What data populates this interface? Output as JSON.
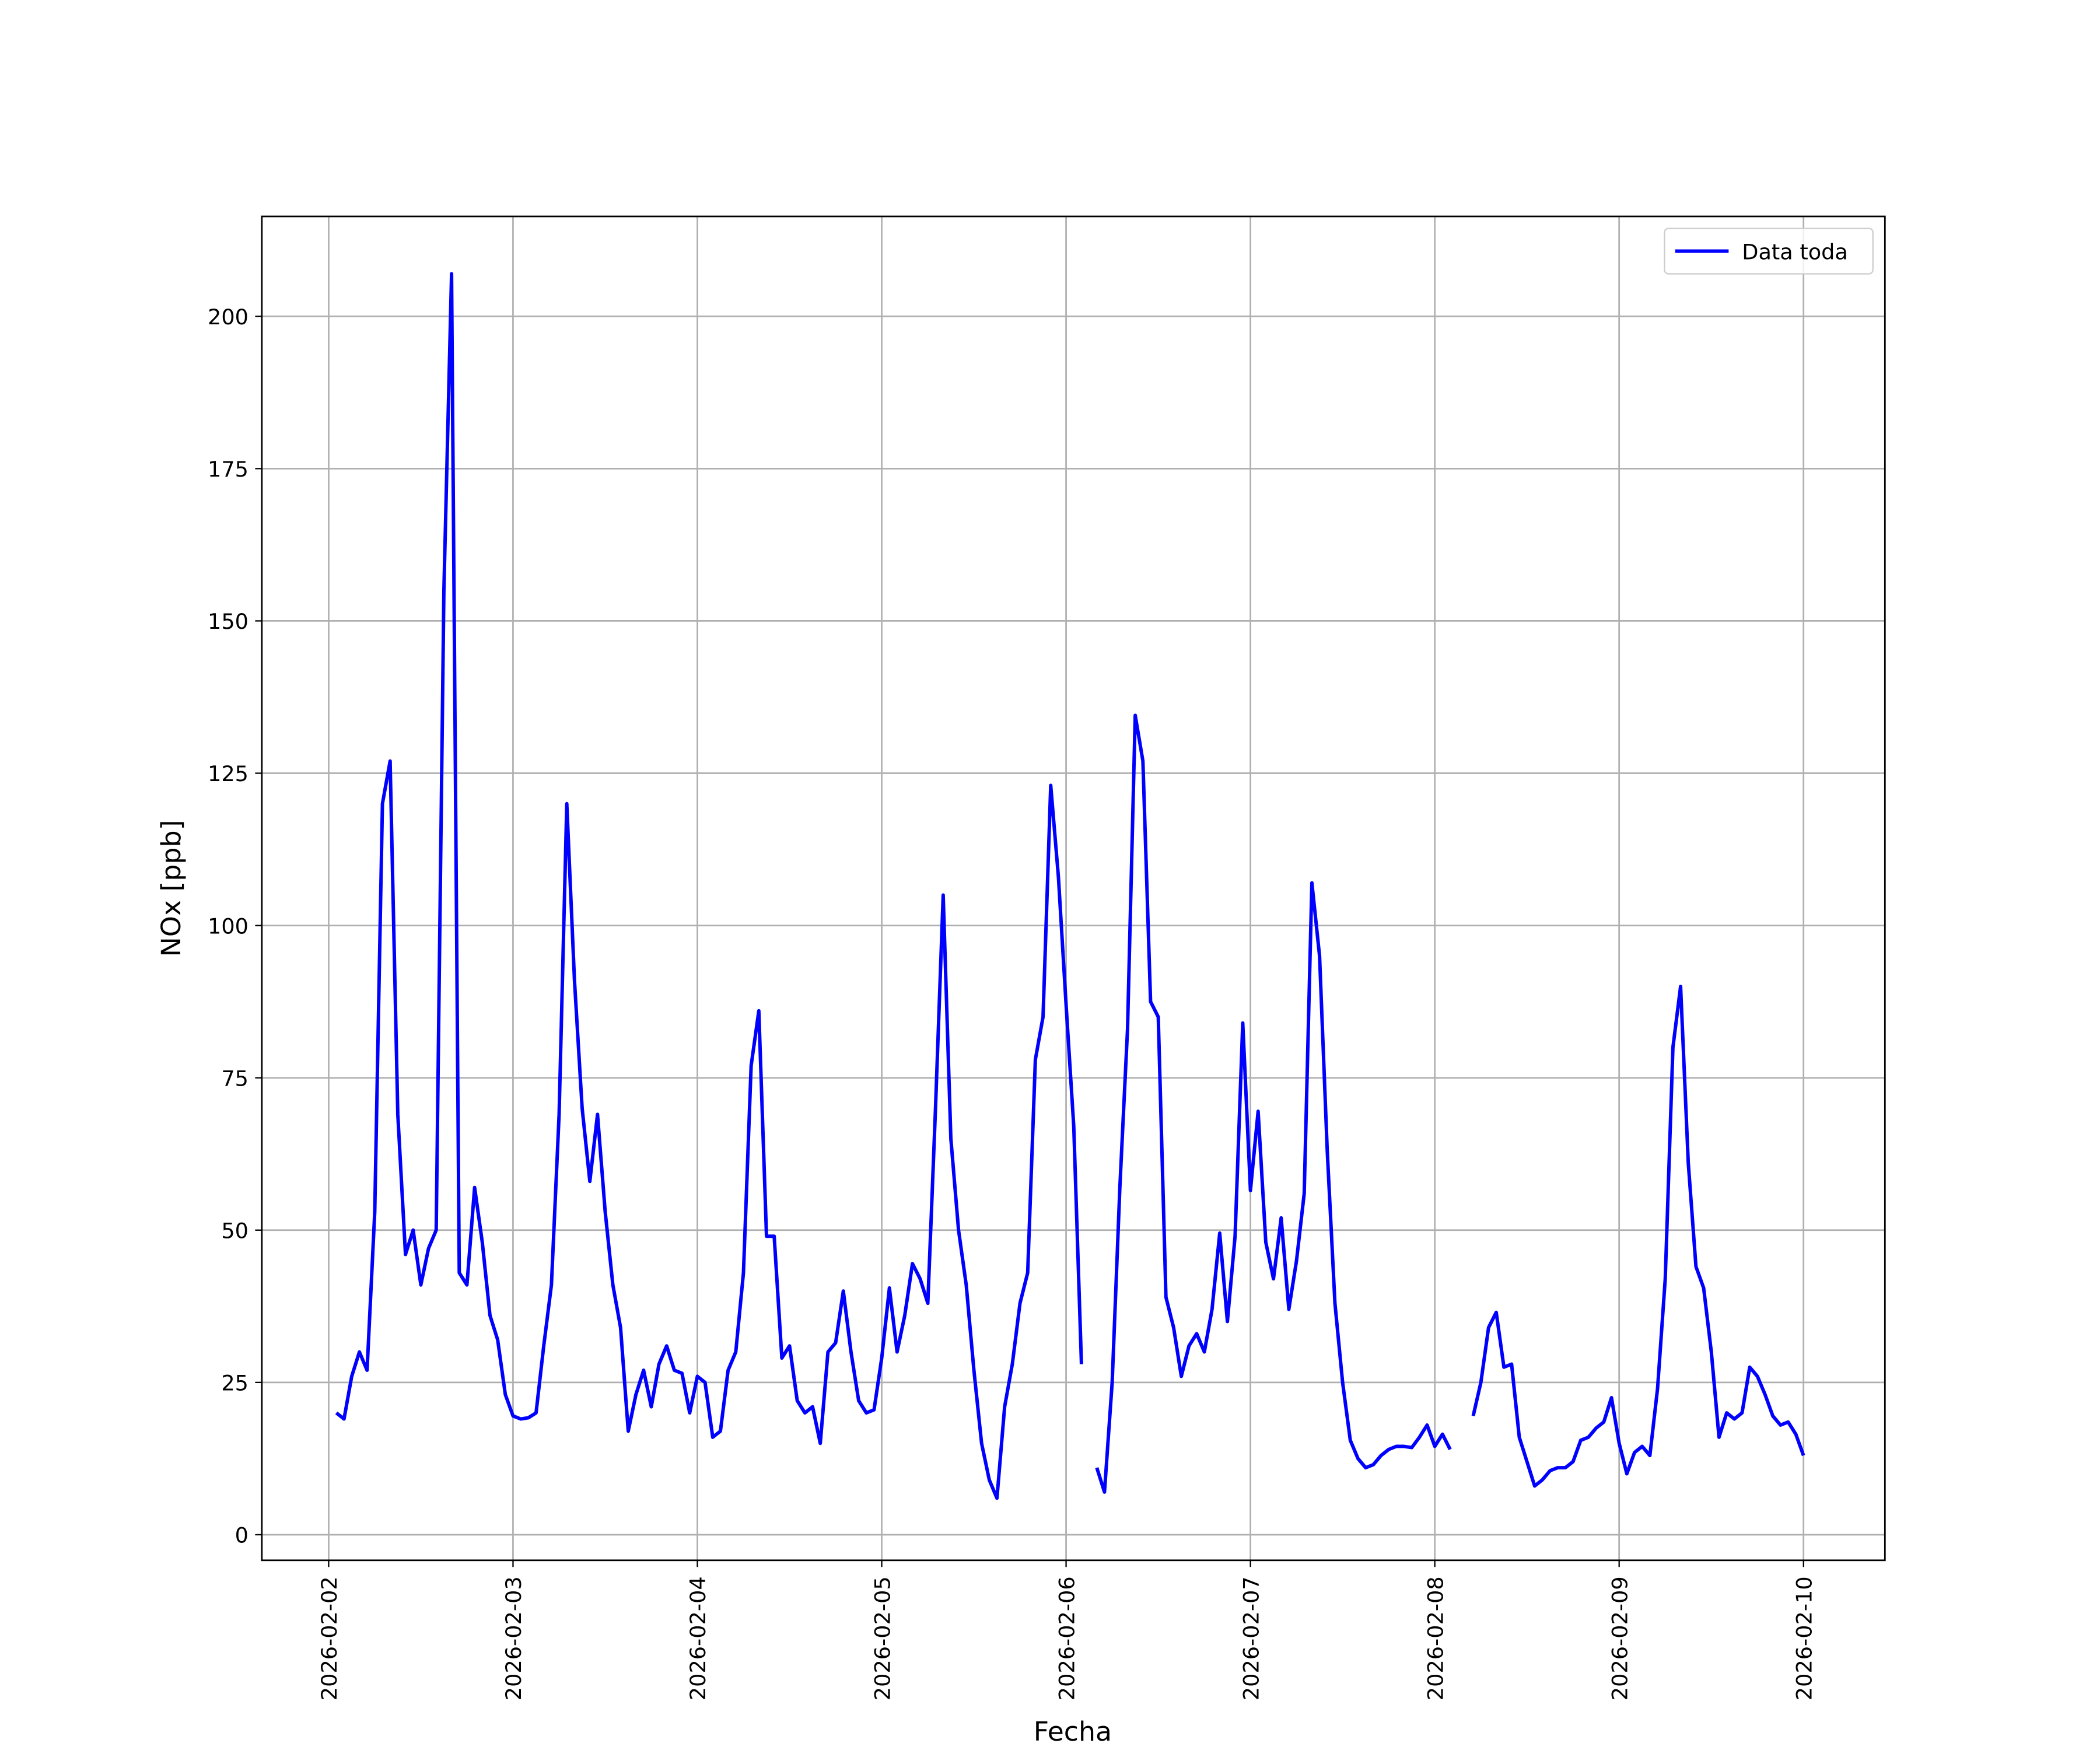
{
  "chart_data": {
    "type": "line",
    "xlabel": "Fecha",
    "ylabel": "NOx [ppb]",
    "x": [
      "2026-02-02T01:00",
      "2026-02-02T02:00",
      "2026-02-02T03:00",
      "2026-02-02T04:00",
      "2026-02-02T05:00",
      "2026-02-02T06:00",
      "2026-02-02T07:00",
      "2026-02-02T08:00",
      "2026-02-02T09:00",
      "2026-02-02T10:00",
      "2026-02-02T11:00",
      "2026-02-02T12:00",
      "2026-02-02T13:00",
      "2026-02-02T14:00",
      "2026-02-02T15:00",
      "2026-02-02T16:00",
      "2026-02-02T17:00",
      "2026-02-02T18:00",
      "2026-02-02T19:00",
      "2026-02-02T20:00",
      "2026-02-02T21:00",
      "2026-02-02T22:00",
      "2026-02-02T23:00",
      "2026-02-03T00:00",
      "2026-02-03T01:00",
      "2026-02-03T02:00",
      "2026-02-03T03:00",
      "2026-02-03T04:00",
      "2026-02-03T05:00",
      "2026-02-03T06:00",
      "2026-02-03T07:00",
      "2026-02-03T08:00",
      "2026-02-03T09:00",
      "2026-02-03T10:00",
      "2026-02-03T11:00",
      "2026-02-03T12:00",
      "2026-02-03T13:00",
      "2026-02-03T14:00",
      "2026-02-03T15:00",
      "2026-02-03T16:00",
      "2026-02-03T17:00",
      "2026-02-03T18:00",
      "2026-02-03T19:00",
      "2026-02-03T20:00",
      "2026-02-03T21:00",
      "2026-02-03T22:00",
      "2026-02-03T23:00",
      "2026-02-04T00:00",
      "2026-02-04T01:00",
      "2026-02-04T02:00",
      "2026-02-04T03:00",
      "2026-02-04T04:00",
      "2026-02-04T05:00",
      "2026-02-04T06:00",
      "2026-02-04T07:00",
      "2026-02-04T08:00",
      "2026-02-04T09:00",
      "2026-02-04T10:00",
      "2026-02-04T11:00",
      "2026-02-04T12:00",
      "2026-02-04T13:00",
      "2026-02-04T14:00",
      "2026-02-04T15:00",
      "2026-02-04T16:00",
      "2026-02-04T17:00",
      "2026-02-04T18:00",
      "2026-02-04T19:00",
      "2026-02-04T20:00",
      "2026-02-04T21:00",
      "2026-02-04T22:00",
      "2026-02-04T23:00",
      "2026-02-05T00:00",
      "2026-02-05T01:00",
      "2026-02-05T02:00",
      "2026-02-05T03:00",
      "2026-02-05T04:00",
      "2026-02-05T05:00",
      "2026-02-05T06:00",
      "2026-02-05T07:00",
      "2026-02-05T08:00",
      "2026-02-05T09:00",
      "2026-02-05T10:00",
      "2026-02-05T11:00",
      "2026-02-05T12:00",
      "2026-02-05T13:00",
      "2026-02-05T14:00",
      "2026-02-05T15:00",
      "2026-02-05T16:00",
      "2026-02-05T17:00",
      "2026-02-05T18:00",
      "2026-02-05T19:00",
      "2026-02-05T20:00",
      "2026-02-05T21:00",
      "2026-02-05T22:00",
      "2026-02-05T23:00",
      "2026-02-06T00:00",
      "2026-02-06T01:00",
      "2026-02-06T02:00",
      "2026-02-06T03:00",
      "2026-02-06T04:00",
      "2026-02-06T05:00",
      "2026-02-06T06:00",
      "2026-02-06T07:00",
      "2026-02-06T08:00",
      "2026-02-06T09:00",
      "2026-02-06T10:00",
      "2026-02-06T11:00",
      "2026-02-06T12:00",
      "2026-02-06T13:00",
      "2026-02-06T14:00",
      "2026-02-06T15:00",
      "2026-02-06T16:00",
      "2026-02-06T17:00",
      "2026-02-06T18:00",
      "2026-02-06T19:00",
      "2026-02-06T20:00",
      "2026-02-06T21:00",
      "2026-02-06T22:00",
      "2026-02-06T23:00",
      "2026-02-07T00:00",
      "2026-02-07T01:00",
      "2026-02-07T02:00",
      "2026-02-07T03:00",
      "2026-02-07T04:00",
      "2026-02-07T05:00",
      "2026-02-07T06:00",
      "2026-02-07T07:00",
      "2026-02-07T08:00",
      "2026-02-07T09:00",
      "2026-02-07T10:00",
      "2026-02-07T11:00",
      "2026-02-07T12:00",
      "2026-02-07T13:00",
      "2026-02-07T14:00",
      "2026-02-07T15:00",
      "2026-02-07T16:00",
      "2026-02-07T17:00",
      "2026-02-07T18:00",
      "2026-02-07T19:00",
      "2026-02-07T20:00",
      "2026-02-07T21:00",
      "2026-02-07T22:00",
      "2026-02-07T23:00",
      "2026-02-08T00:00",
      "2026-02-08T01:00",
      "2026-02-08T02:00",
      "2026-02-08T03:00",
      "2026-02-08T04:00",
      "2026-02-08T05:00",
      "2026-02-08T06:00",
      "2026-02-08T07:00",
      "2026-02-08T08:00",
      "2026-02-08T09:00",
      "2026-02-08T10:00",
      "2026-02-08T11:00",
      "2026-02-08T12:00",
      "2026-02-08T13:00",
      "2026-02-08T14:00",
      "2026-02-08T15:00",
      "2026-02-08T16:00",
      "2026-02-08T17:00",
      "2026-02-08T18:00",
      "2026-02-08T19:00",
      "2026-02-08T20:00",
      "2026-02-08T21:00",
      "2026-02-08T22:00",
      "2026-02-08T23:00",
      "2026-02-09T00:00",
      "2026-02-09T01:00",
      "2026-02-09T02:00",
      "2026-02-09T03:00",
      "2026-02-09T04:00",
      "2026-02-09T05:00",
      "2026-02-09T06:00",
      "2026-02-09T07:00",
      "2026-02-09T08:00",
      "2026-02-09T09:00",
      "2026-02-09T10:00",
      "2026-02-09T11:00",
      "2026-02-09T12:00",
      "2026-02-09T13:00",
      "2026-02-09T14:00",
      "2026-02-09T15:00",
      "2026-02-09T16:00",
      "2026-02-09T17:00",
      "2026-02-09T18:00",
      "2026-02-09T19:00",
      "2026-02-09T20:00",
      "2026-02-09T21:00",
      "2026-02-09T22:00",
      "2026-02-09T23:00",
      "2026-02-10T00:00"
    ],
    "series": [
      {
        "name": "Data toda",
        "color": "#0000ff",
        "values": [
          20,
          19,
          26,
          30,
          27,
          53,
          120,
          127,
          69,
          46,
          50,
          41,
          47,
          50,
          155,
          207,
          43,
          41,
          57,
          48,
          36,
          32,
          23,
          19.5,
          19,
          19.2,
          20,
          31,
          41,
          69,
          120,
          91,
          70,
          58,
          69,
          53,
          41,
          34,
          17,
          23,
          27,
          21,
          28,
          31,
          27,
          26.5,
          20,
          26,
          25,
          16,
          17,
          27,
          30,
          43,
          77,
          86,
          49,
          49,
          29,
          31,
          22,
          20,
          21,
          15,
          30,
          31.5,
          40,
          30,
          22,
          20,
          20.5,
          29,
          40.5,
          30,
          36,
          44.5,
          42,
          38,
          70,
          105,
          65,
          50,
          41,
          27,
          15,
          9,
          6,
          21,
          28,
          38,
          43,
          78,
          85,
          123,
          108,
          87,
          67,
          28,
          null,
          11,
          7,
          25,
          57,
          83,
          134.5,
          127,
          87.5,
          85,
          39,
          34,
          26,
          31,
          33,
          30,
          37,
          49.5,
          35,
          49,
          84,
          56.5,
          69.5,
          48,
          42,
          52,
          37,
          45,
          56,
          107,
          95,
          63,
          38,
          25,
          15.5,
          12.5,
          11,
          11.5,
          13,
          14,
          14.5,
          14.5,
          14.3,
          16,
          18,
          14.5,
          16.5,
          14,
          null,
          null,
          19.5,
          25,
          34,
          36.5,
          27.5,
          28,
          16,
          12,
          8,
          9,
          10.5,
          11,
          11,
          12,
          15.5,
          16,
          17.5,
          18.5,
          22.5,
          15,
          10,
          13.5,
          14.5,
          13,
          24,
          42,
          80,
          90,
          61,
          44,
          40.5,
          30,
          16,
          20,
          19,
          20,
          27.5,
          26,
          23,
          19.5,
          18,
          18.5,
          16.5,
          13
        ]
      }
    ],
    "xlim": [
      "2026-02-01T15:18",
      "2026-02-10T10:36"
    ],
    "xticks": [
      "2026-02-02",
      "2026-02-03",
      "2026-02-04",
      "2026-02-05",
      "2026-02-06",
      "2026-02-07",
      "2026-02-08",
      "2026-02-09",
      "2026-02-10"
    ],
    "ylim": [
      -4.2,
      216.4
    ],
    "yticks": [
      0,
      25,
      50,
      75,
      100,
      125,
      150,
      175,
      200
    ],
    "grid": true,
    "legend": "upper right"
  }
}
